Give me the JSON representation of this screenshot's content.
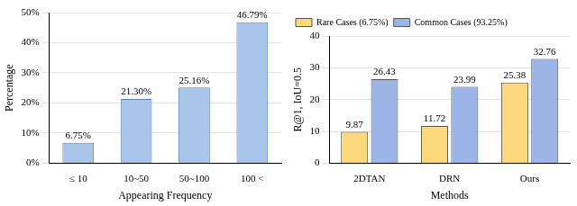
{
  "chart_data": [
    {
      "type": "bar",
      "categories": [
        "≤ 10",
        "10~50",
        "50~100",
        "100 <"
      ],
      "values": [
        6.75,
        21.3,
        25.16,
        46.79
      ],
      "value_labels": [
        "6.75%",
        "21.30%",
        "25.16%",
        "46.79%"
      ],
      "color": "#a9c5ea",
      "xlabel": "Appearing Frequency",
      "ylabel": "Percentage",
      "ylim": [
        0,
        50
      ],
      "yticks": [
        {
          "value": 0,
          "label": "0%"
        },
        {
          "value": 10,
          "label": "10%"
        },
        {
          "value": 20,
          "label": "20%"
        },
        {
          "value": 30,
          "label": "30%"
        },
        {
          "value": 40,
          "label": "40%"
        },
        {
          "value": 50,
          "label": "50%"
        }
      ],
      "grid": true,
      "data_labels": true
    },
    {
      "type": "bar",
      "categories": [
        "2DTAN",
        "DRN",
        "Ours"
      ],
      "series": [
        {
          "name": "Rare Cases (6.75%)",
          "color": "#fdd97c",
          "values": [
            9.87,
            11.72,
            25.38
          ]
        },
        {
          "name": "Common Cases (93.25%)",
          "color": "#9db4e6",
          "values": [
            26.43,
            23.99,
            32.76
          ]
        }
      ],
      "xlabel": "Methods",
      "ylabel": "R@1, IoU=0.5",
      "ylim": [
        0,
        40
      ],
      "yticks": [
        0,
        10,
        20,
        30,
        40
      ],
      "grid": true,
      "legend": "upper left",
      "data_labels": true
    }
  ]
}
